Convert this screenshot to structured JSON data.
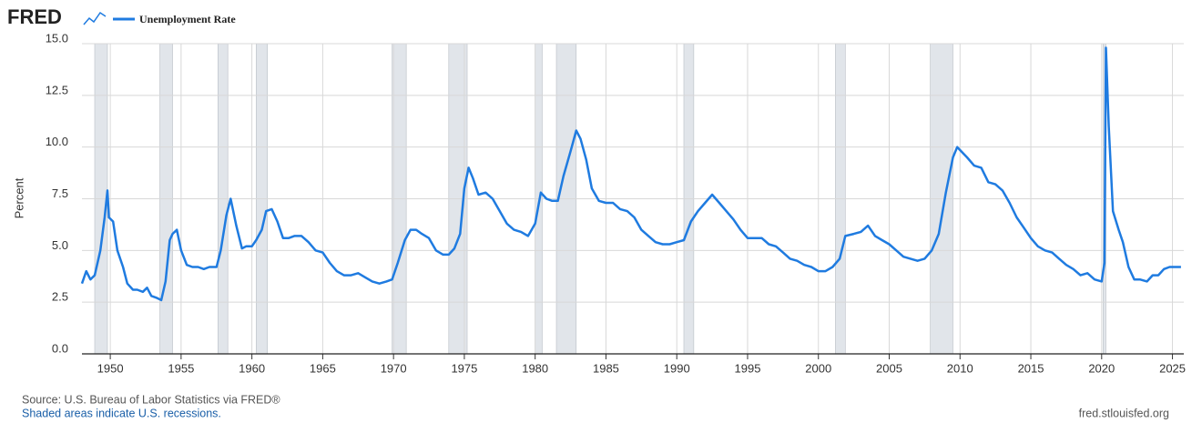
{
  "logo": "FRED",
  "chart_data": {
    "type": "line",
    "y_label": "Percent",
    "source": "Source: U.S. Bureau of Labor Statistics via FRED®",
    "note": "Shaded areas indicate U.S. recessions.",
    "site": "fred.stlouisfed.org",
    "xlim": [
      1948.0,
      2025.8
    ],
    "xticks": [
      1950,
      1955,
      1960,
      1965,
      1970,
      1975,
      1980,
      1985,
      1990,
      1995,
      2000,
      2005,
      2010,
      2015,
      2020,
      2025
    ],
    "ylim": [
      0,
      15
    ],
    "yticks": [
      {
        "value": 0,
        "label": "0.0"
      },
      {
        "value": 2.5,
        "label": "2.5"
      },
      {
        "value": 5,
        "label": "5.0"
      },
      {
        "value": 7.5,
        "label": "7.5"
      },
      {
        "value": 10,
        "label": "10.0"
      },
      {
        "value": 12.5,
        "label": "12.5"
      },
      {
        "value": 15,
        "label": "15.0"
      }
    ],
    "grid": true,
    "recession_color": "#e1e5ea",
    "recessions": [
      [
        1948.9,
        1949.8
      ],
      [
        1953.5,
        1954.4
      ],
      [
        1957.6,
        1958.3
      ],
      [
        1960.3,
        1961.1
      ],
      [
        1969.9,
        1970.9
      ],
      [
        1973.9,
        1975.2
      ],
      [
        1980.0,
        1980.5
      ],
      [
        1981.5,
        1982.9
      ],
      [
        1990.5,
        1991.2
      ],
      [
        2001.2,
        2001.9
      ],
      [
        2007.9,
        2009.5
      ],
      [
        2020.1,
        2020.3
      ]
    ],
    "x": [
      1948.0,
      1948.3,
      1948.6,
      1948.9,
      1949.3,
      1949.6,
      1949.8,
      1949.9,
      1950.2,
      1950.5,
      1950.9,
      1951.2,
      1951.6,
      1951.9,
      1952.3,
      1952.6,
      1952.9,
      1953.3,
      1953.6,
      1953.9,
      1954.2,
      1954.4,
      1954.7,
      1955.0,
      1955.4,
      1955.8,
      1956.2,
      1956.6,
      1957.0,
      1957.5,
      1957.8,
      1958.2,
      1958.5,
      1958.9,
      1959.3,
      1959.6,
      1960.0,
      1960.3,
      1960.7,
      1961.0,
      1961.4,
      1961.8,
      1962.2,
      1962.6,
      1963.0,
      1963.5,
      1964.0,
      1964.5,
      1965.0,
      1965.5,
      1966.0,
      1966.5,
      1967.0,
      1967.5,
      1968.0,
      1968.5,
      1969.0,
      1969.5,
      1969.9,
      1970.3,
      1970.8,
      1971.2,
      1971.6,
      1972.0,
      1972.5,
      1973.0,
      1973.5,
      1973.9,
      1974.3,
      1974.7,
      1975.0,
      1975.3,
      1975.6,
      1976.0,
      1976.5,
      1977.0,
      1977.5,
      1978.0,
      1978.5,
      1979.0,
      1979.5,
      1980.0,
      1980.4,
      1980.8,
      1981.2,
      1981.6,
      1982.0,
      1982.5,
      1982.9,
      1983.2,
      1983.6,
      1984.0,
      1984.5,
      1985.0,
      1985.5,
      1986.0,
      1986.5,
      1987.0,
      1987.5,
      1988.0,
      1988.5,
      1989.0,
      1989.5,
      1990.0,
      1990.5,
      1991.0,
      1991.5,
      1992.0,
      1992.5,
      1993.0,
      1993.5,
      1994.0,
      1994.5,
      1995.0,
      1995.5,
      1996.0,
      1996.5,
      1997.0,
      1997.5,
      1998.0,
      1998.5,
      1999.0,
      1999.5,
      2000.0,
      2000.5,
      2001.0,
      2001.5,
      2001.9,
      2002.5,
      2003.0,
      2003.5,
      2004.0,
      2004.5,
      2005.0,
      2005.5,
      2006.0,
      2006.5,
      2007.0,
      2007.5,
      2008.0,
      2008.5,
      2009.0,
      2009.5,
      2009.8,
      2010.5,
      2011.0,
      2011.5,
      2012.0,
      2012.5,
      2013.0,
      2013.5,
      2014.0,
      2014.5,
      2015.0,
      2015.5,
      2016.0,
      2016.5,
      2017.0,
      2017.5,
      2018.0,
      2018.5,
      2019.0,
      2019.5,
      2020.0,
      2020.2,
      2020.3,
      2020.5,
      2020.8,
      2021.2,
      2021.5,
      2021.9,
      2022.3,
      2022.7,
      2023.2,
      2023.6,
      2024.0,
      2024.4,
      2024.8,
      2025.2,
      2025.6
    ],
    "series": [
      {
        "name": "Unemployment Rate",
        "color": "#1f7be0",
        "values": [
          3.4,
          4.0,
          3.6,
          3.8,
          5.0,
          6.6,
          7.9,
          6.6,
          6.4,
          5.0,
          4.2,
          3.4,
          3.1,
          3.1,
          3.0,
          3.2,
          2.8,
          2.7,
          2.6,
          3.5,
          5.5,
          5.8,
          6.0,
          5.0,
          4.3,
          4.2,
          4.2,
          4.1,
          4.2,
          4.2,
          5.0,
          6.7,
          7.5,
          6.2,
          5.1,
          5.2,
          5.2,
          5.5,
          6.0,
          6.9,
          7.0,
          6.4,
          5.6,
          5.6,
          5.7,
          5.7,
          5.4,
          5.0,
          4.9,
          4.4,
          4.0,
          3.8,
          3.8,
          3.9,
          3.7,
          3.5,
          3.4,
          3.5,
          3.6,
          4.4,
          5.5,
          6.0,
          6.0,
          5.8,
          5.6,
          5.0,
          4.8,
          4.8,
          5.1,
          5.8,
          8.0,
          9.0,
          8.5,
          7.7,
          7.8,
          7.5,
          6.9,
          6.3,
          6.0,
          5.9,
          5.7,
          6.3,
          7.8,
          7.5,
          7.4,
          7.4,
          8.6,
          9.8,
          10.8,
          10.4,
          9.4,
          8.0,
          7.4,
          7.3,
          7.3,
          7.0,
          6.9,
          6.6,
          6.0,
          5.7,
          5.4,
          5.3,
          5.3,
          5.4,
          5.5,
          6.4,
          6.9,
          7.3,
          7.7,
          7.3,
          6.9,
          6.5,
          6.0,
          5.6,
          5.6,
          5.6,
          5.3,
          5.2,
          4.9,
          4.6,
          4.5,
          4.3,
          4.2,
          4.0,
          4.0,
          4.2,
          4.6,
          5.7,
          5.8,
          5.9,
          6.2,
          5.7,
          5.5,
          5.3,
          5.0,
          4.7,
          4.6,
          4.5,
          4.6,
          5.0,
          5.8,
          7.8,
          9.5,
          10.0,
          9.5,
          9.1,
          9.0,
          8.3,
          8.2,
          7.9,
          7.3,
          6.6,
          6.1,
          5.6,
          5.2,
          5.0,
          4.9,
          4.6,
          4.3,
          4.1,
          3.8,
          3.9,
          3.6,
          3.5,
          4.4,
          14.8,
          11.0,
          6.9,
          6.0,
          5.4,
          4.2,
          3.6,
          3.6,
          3.5,
          3.8,
          3.8,
          4.1,
          4.2,
          4.2,
          4.2
        ]
      }
    ]
  }
}
